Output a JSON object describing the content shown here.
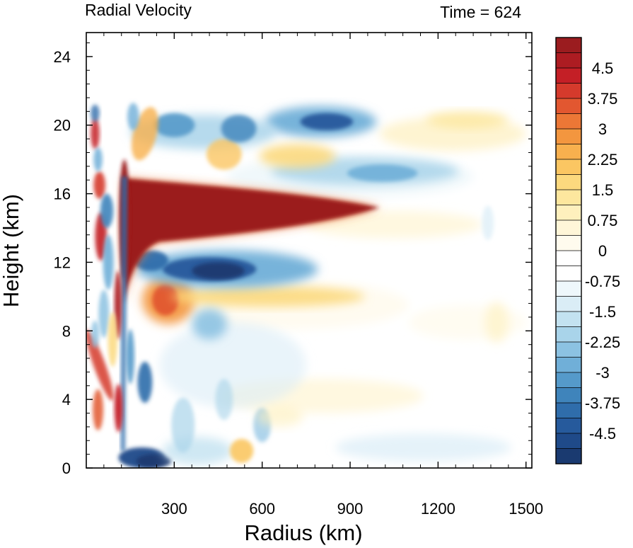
{
  "chart_data": {
    "type": "heatmap",
    "title_left": "Radial Velocity",
    "title_right": "Time = 624",
    "xlabel": "Radius (km)",
    "ylabel": "Height (km)",
    "xlim": [
      0,
      1520
    ],
    "ylim": [
      0,
      25.4
    ],
    "xticks": [
      300,
      600,
      900,
      1200,
      1500
    ],
    "xtick_labels": [
      "300",
      "600",
      "900",
      "1200",
      "1500"
    ],
    "yticks": [
      0,
      4,
      8,
      12,
      16,
      20,
      24
    ],
    "ytick_labels": [
      "0",
      "4",
      "8",
      "12",
      "16",
      "20",
      "24"
    ],
    "colorbar": {
      "levels": 28,
      "labels": [
        "4.5",
        "3.75",
        "3",
        "2.25",
        "1.5",
        "0.75",
        "0",
        "-0.75",
        "-1.5",
        "-2.25",
        "-3",
        "-3.75",
        "-4.5"
      ],
      "colors": [
        "#9b1c1f",
        "#ad1c22",
        "#c41f26",
        "#d53a2c",
        "#e25730",
        "#ec7736",
        "#f3963f",
        "#f8b04e",
        "#fbc662",
        "#fcd97e",
        "#fde79e",
        "#fef0bd",
        "#fff6d8",
        "#fffbee",
        "#ffffff",
        "#ffffff",
        "#eef7fb",
        "#daedf6",
        "#c3e2f0",
        "#a9d4ea",
        "#8cc2e2",
        "#70afd8",
        "#559aca",
        "#3f84bb",
        "#2f6dab",
        "#265a9c",
        "#1f4a89",
        "#1a3a70"
      ]
    },
    "features": [
      {
        "name": "upper outflow jet",
        "sign": "positive",
        "r_range": [
          130,
          1000
        ],
        "z_range": [
          13.5,
          16.5
        ],
        "peak": 5.0
      },
      {
        "name": "inflow below outflow",
        "sign": "negative",
        "r_range": [
          180,
          700
        ],
        "z_range": [
          11,
          12.8
        ],
        "peak": -5.0
      },
      {
        "name": "boundary layer inflow",
        "sign": "negative",
        "r_range": [
          100,
          280
        ],
        "z_range": [
          0,
          1
        ],
        "peak": -5.0
      },
      {
        "name": "upper level inflow band",
        "sign": "negative",
        "r_range": [
          700,
          900
        ],
        "z_range": [
          19.5,
          20.8
        ],
        "peak": -4.0
      },
      {
        "name": "eyewall oscillations",
        "sign": "mixed",
        "r_range": [
          20,
          170
        ],
        "z_range": [
          0,
          21
        ],
        "peak": 5.0
      }
    ]
  }
}
